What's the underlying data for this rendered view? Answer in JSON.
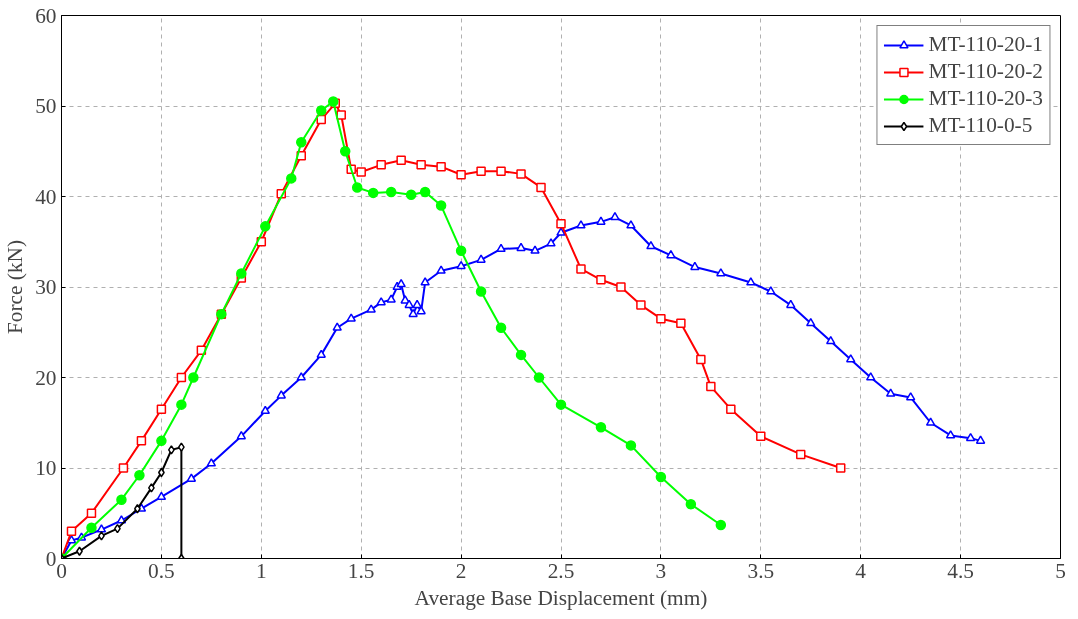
{
  "chart_data": {
    "type": "line",
    "xlabel": "Average Base Displacement (mm)",
    "ylabel": "Force (kN)",
    "xlim": [
      0,
      5
    ],
    "ylim": [
      0,
      60
    ],
    "xticks": [
      0,
      0.5,
      1,
      1.5,
      2,
      2.5,
      3,
      3.5,
      4,
      4.5,
      5
    ],
    "yticks": [
      0,
      10,
      20,
      30,
      40,
      50,
      60
    ],
    "grid": true,
    "legend": "top right",
    "line_style": "solid",
    "series": [
      {
        "name": "MT-110-20-1",
        "color": "#0000ff",
        "marker": "triangle",
        "x": [
          0,
          0.05,
          0.1,
          0.2,
          0.3,
          0.4,
          0.5,
          0.65,
          0.75,
          0.9,
          1.02,
          1.1,
          1.2,
          1.3,
          1.38,
          1.45,
          1.55,
          1.6,
          1.65,
          1.68,
          1.7,
          1.72,
          1.74,
          1.76,
          1.78,
          1.8,
          1.82,
          1.9,
          2.0,
          2.1,
          2.2,
          2.3,
          2.37,
          2.45,
          2.5,
          2.6,
          2.7,
          2.77,
          2.85,
          2.95,
          3.05,
          3.17,
          3.3,
          3.45,
          3.55,
          3.65,
          3.75,
          3.85,
          3.95,
          4.05,
          4.15,
          4.25,
          4.35,
          4.45,
          4.55,
          4.6
        ],
        "values": [
          0,
          2,
          2.3,
          3.2,
          4.2,
          5.5,
          6.8,
          8.8,
          10.5,
          13.5,
          16.3,
          18,
          20,
          22.5,
          25.5,
          26.5,
          27.5,
          28.3,
          28.6,
          30,
          30.3,
          28.5,
          28,
          27,
          28,
          27.3,
          30.5,
          31.8,
          32.3,
          33,
          34.2,
          34.3,
          34,
          34.8,
          36,
          36.8,
          37.2,
          37.7,
          36.8,
          34.5,
          33.5,
          32.2,
          31.5,
          30.5,
          29.5,
          28,
          26,
          24,
          22,
          20,
          18.2,
          17.8,
          15,
          13.6,
          13.3,
          13
        ]
      },
      {
        "name": "MT-110-20-2",
        "color": "#ff0000",
        "marker": "square",
        "x": [
          0,
          0.05,
          0.15,
          0.31,
          0.4,
          0.5,
          0.6,
          0.7,
          0.8,
          0.9,
          1.0,
          1.1,
          1.2,
          1.3,
          1.37,
          1.4,
          1.45,
          1.5,
          1.6,
          1.7,
          1.8,
          1.9,
          2.0,
          2.1,
          2.2,
          2.3,
          2.4,
          2.5,
          2.6,
          2.7,
          2.8,
          2.9,
          3.0,
          3.1,
          3.2,
          3.25,
          3.35,
          3.5,
          3.7,
          3.9
        ],
        "values": [
          0,
          3,
          5,
          10,
          13,
          16.5,
          20,
          23,
          27,
          31,
          35,
          40.3,
          44.5,
          48.5,
          50.3,
          49,
          43,
          42.7,
          43.5,
          44,
          43.5,
          43.3,
          42.4,
          42.8,
          42.8,
          42.5,
          41,
          37,
          32,
          30.8,
          30,
          28,
          26.5,
          26,
          22,
          19,
          16.5,
          13.5,
          11.5,
          10
        ]
      },
      {
        "name": "MT-110-20-3",
        "color": "#00ff00",
        "marker": "circle",
        "x": [
          0,
          0.15,
          0.3,
          0.39,
          0.5,
          0.6,
          0.66,
          0.8,
          0.9,
          1.02,
          1.15,
          1.2,
          1.3,
          1.36,
          1.42,
          1.48,
          1.56,
          1.65,
          1.75,
          1.82,
          1.9,
          2.0,
          2.1,
          2.2,
          2.3,
          2.39,
          2.5,
          2.7,
          2.85,
          3.0,
          3.15,
          3.3
        ],
        "values": [
          0,
          3.4,
          6.5,
          9.2,
          13,
          17,
          20,
          27,
          31.5,
          36.7,
          42,
          46,
          49.5,
          50.5,
          45,
          41,
          40.4,
          40.5,
          40.2,
          40.5,
          39,
          34,
          29.5,
          25.5,
          22.5,
          20,
          17,
          14.5,
          12.5,
          9,
          6,
          3.7
        ]
      },
      {
        "name": "MT-110-0-5",
        "color": "#000000",
        "marker": "diamond",
        "x": [
          0,
          0.09,
          0.2,
          0.28,
          0.38,
          0.45,
          0.5,
          0.55,
          0.6,
          0.6
        ],
        "values": [
          0,
          0.8,
          2.5,
          3.3,
          5.5,
          7.8,
          9.5,
          12,
          12.3,
          0
        ]
      }
    ]
  }
}
